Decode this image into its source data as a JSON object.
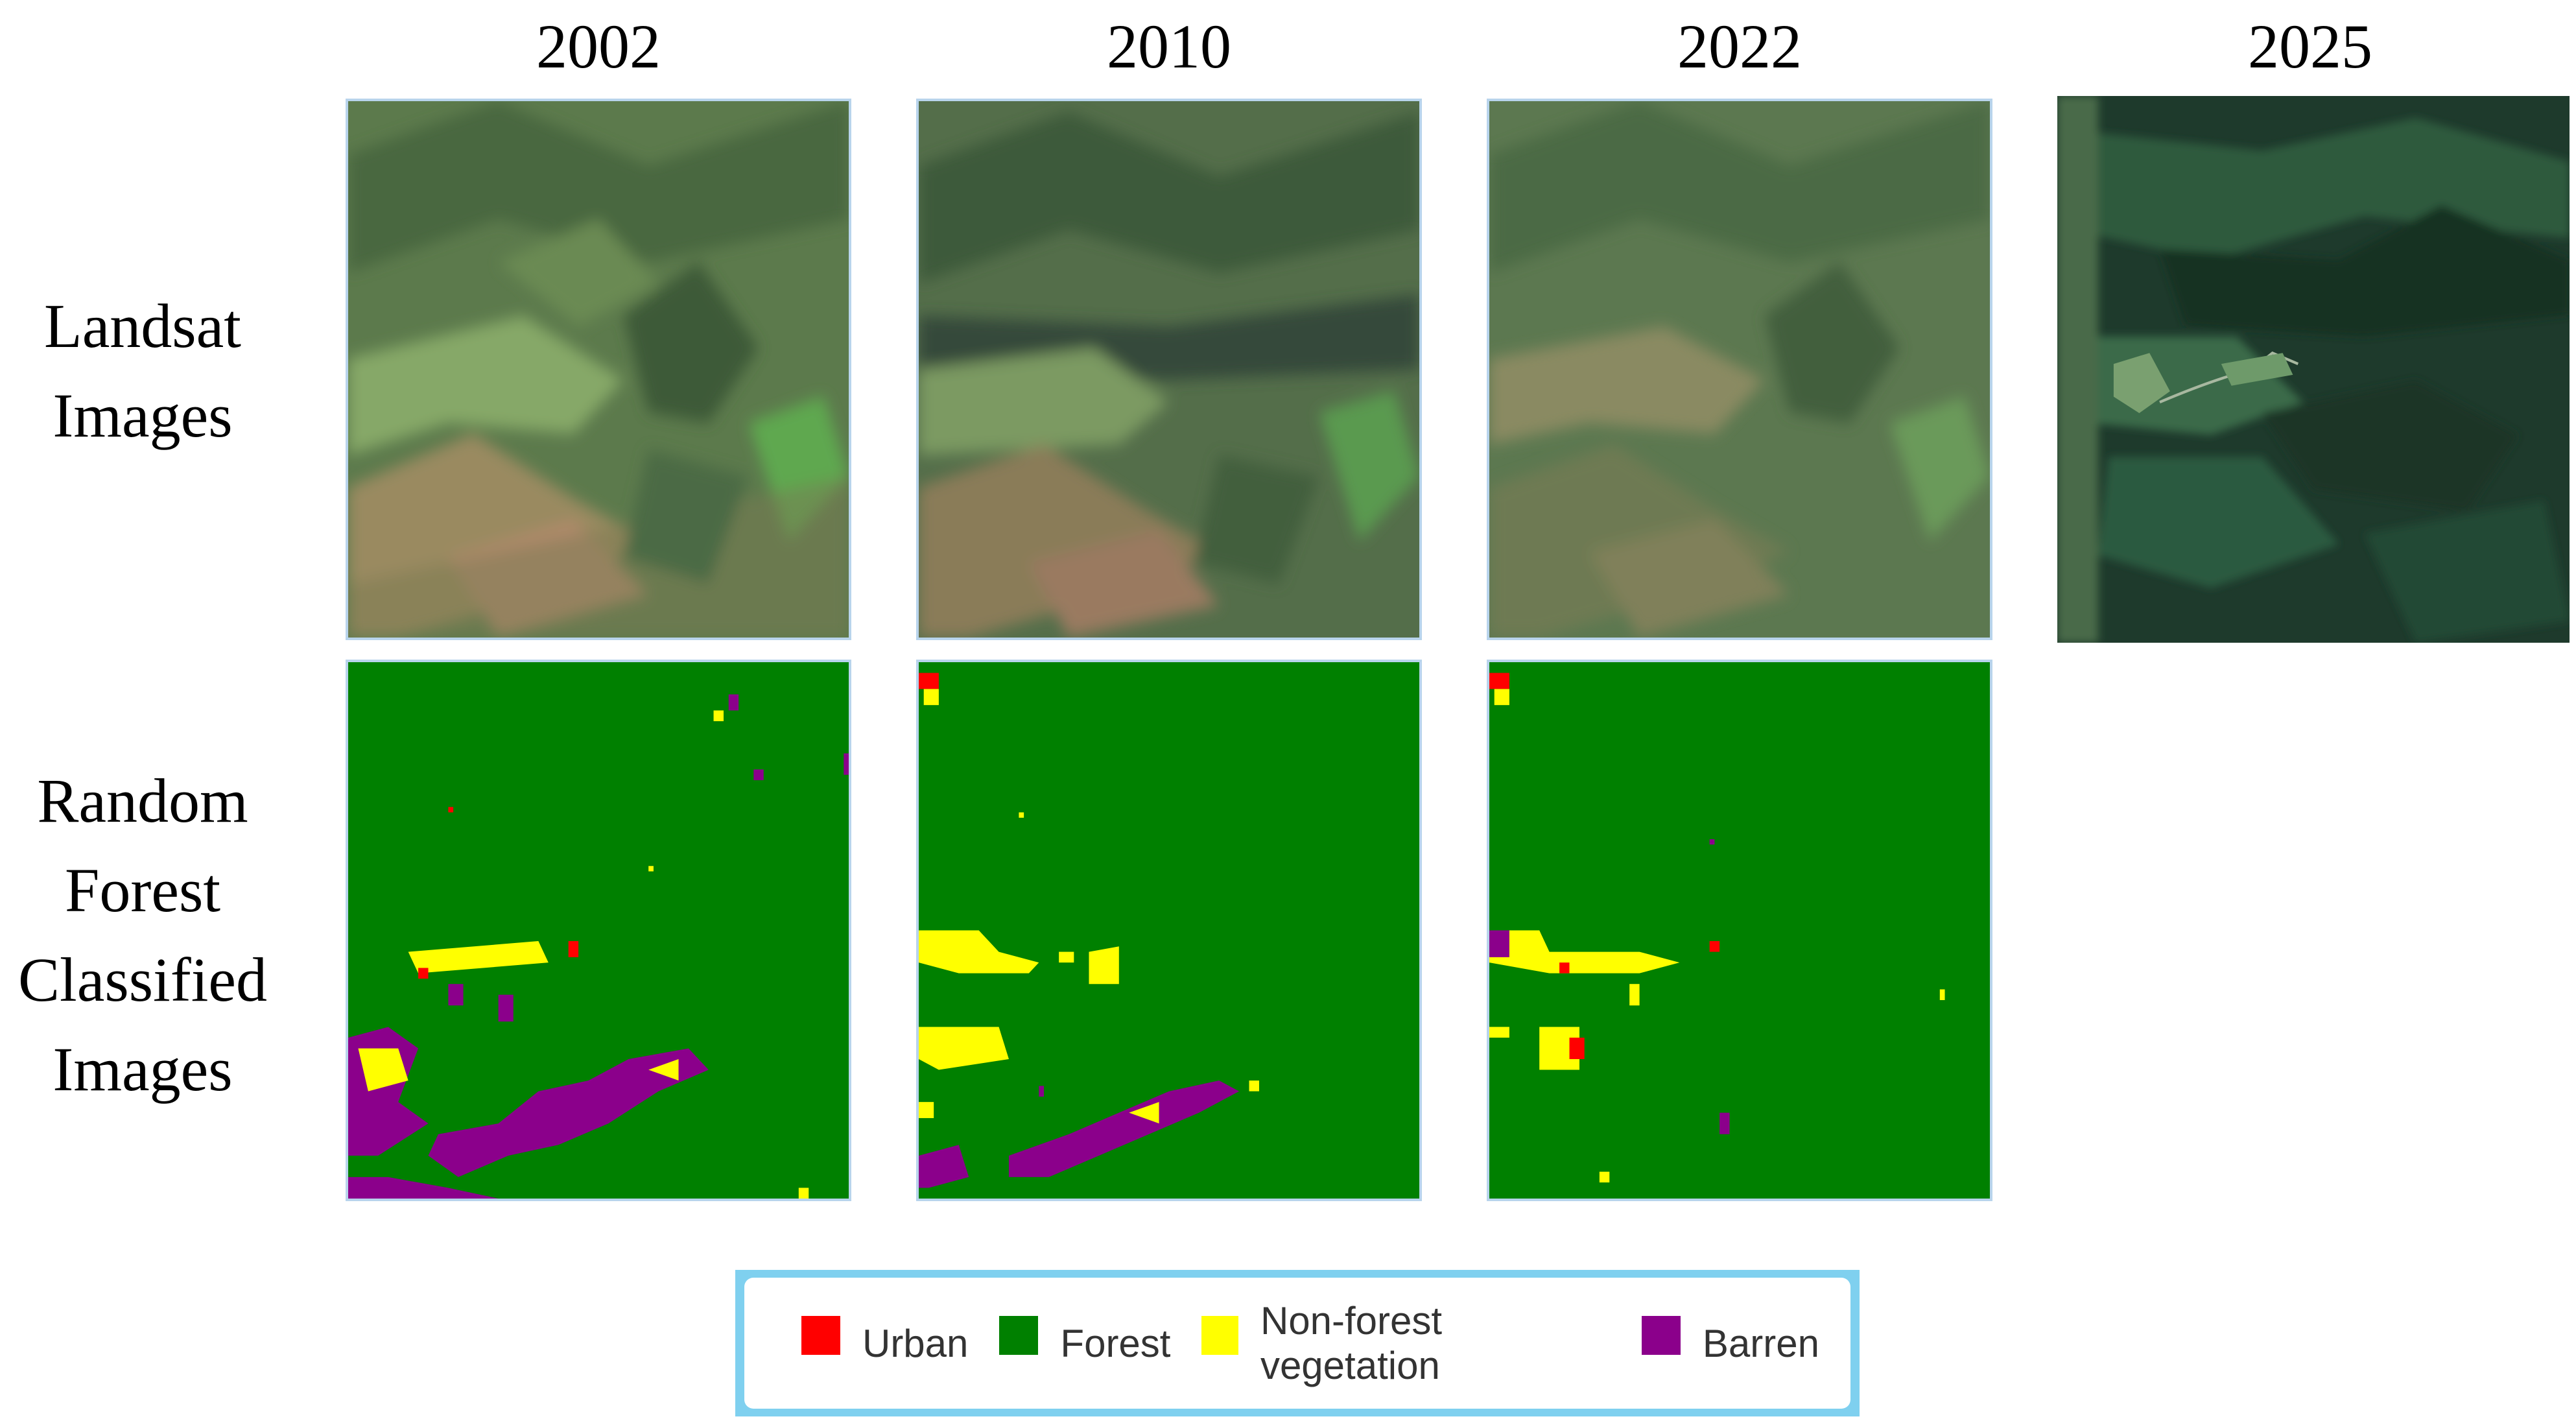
{
  "years": [
    "2002",
    "2010",
    "2022",
    "2025"
  ],
  "rows": {
    "landsat_label_line1": "Landsat",
    "landsat_label_line2": "Images",
    "classified_label_line1": "Random",
    "classified_label_line2": "Forest",
    "classified_label_line3": "Classified",
    "classified_label_line4": "Images"
  },
  "legend": {
    "items": [
      {
        "label": "Urban",
        "color": "#ff0000"
      },
      {
        "label": "Forest",
        "color": "#008000"
      },
      {
        "label": "Non-forest vegetation",
        "color": "#ffff00"
      },
      {
        "label": "Barren",
        "color": "#8b008b"
      }
    ]
  },
  "colors": {
    "frame": "#b8d4ec",
    "legend_border": "#7fd0ef"
  }
}
